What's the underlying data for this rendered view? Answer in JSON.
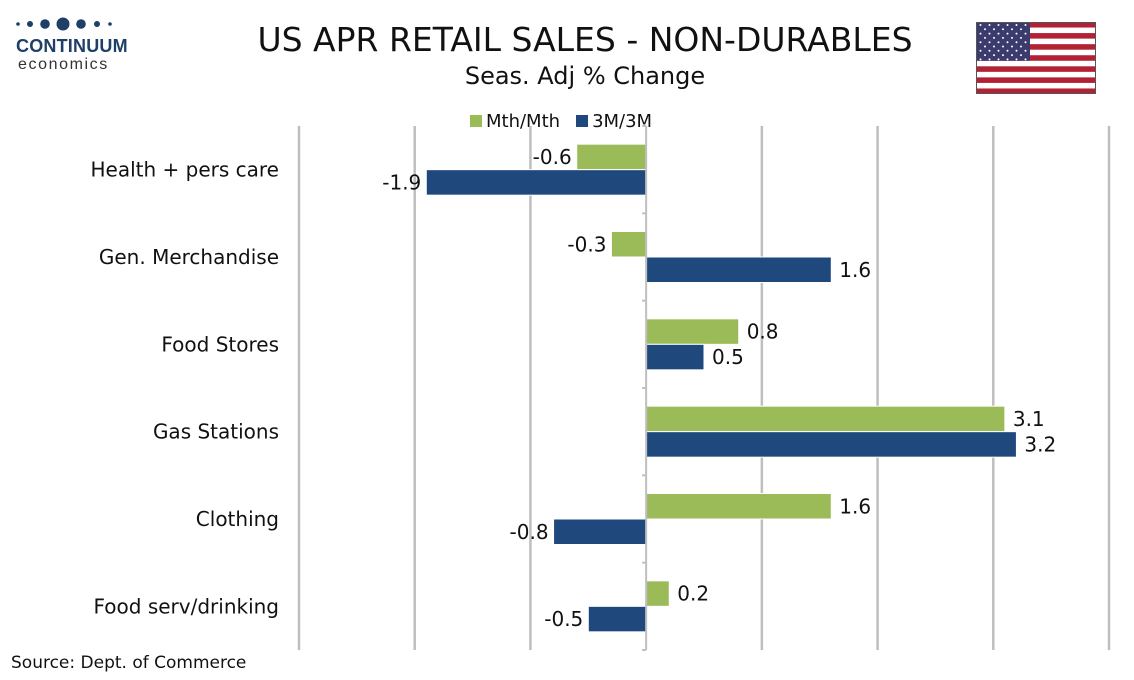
{
  "brand": {
    "name": "CONTINUUM",
    "sub": "economics"
  },
  "title": "US APR RETAIL SALES - NON-DURABLES",
  "subtitle": "Seas. Adj % Change",
  "flag": {
    "icon": "us-flag-icon",
    "colors": {
      "red": "#b22234",
      "white": "#ffffff",
      "blue": "#3c3b6e"
    }
  },
  "legend": [
    {
      "label": "Mth/Mth",
      "color": "#9bbb59"
    },
    {
      "label": "3M/3M",
      "color": "#1f497d"
    }
  ],
  "source": "Source: Dept. of Commerce",
  "chart_data": {
    "type": "bar",
    "orientation": "horizontal",
    "title": "US APR RETAIL SALES - NON-DURABLES",
    "subtitle": "Seas. Adj % Change",
    "categories": [
      "Health + pers care",
      "Gen. Merchandise",
      "Food Stores",
      "Gas Stations",
      "Clothing",
      "Food serv/drinking"
    ],
    "series": [
      {
        "name": "Mth/Mth",
        "color": "#9bbb59",
        "values": [
          -0.6,
          -0.3,
          0.8,
          3.1,
          1.6,
          0.2
        ],
        "labels": [
          "-0.6",
          "-0.3",
          "0.8",
          "3.1",
          "1.6",
          "0.2"
        ]
      },
      {
        "name": "3M/3M",
        "color": "#1f497d",
        "values": [
          -1.9,
          1.6,
          0.5,
          3.2,
          -0.8,
          -0.5
        ],
        "labels": [
          "-1.9",
          "1.6",
          "0.5",
          "3.2",
          "-0.8",
          "-0.5"
        ]
      }
    ],
    "xlim": [
      -3,
      4
    ],
    "grid": true,
    "legend_position": "top"
  }
}
